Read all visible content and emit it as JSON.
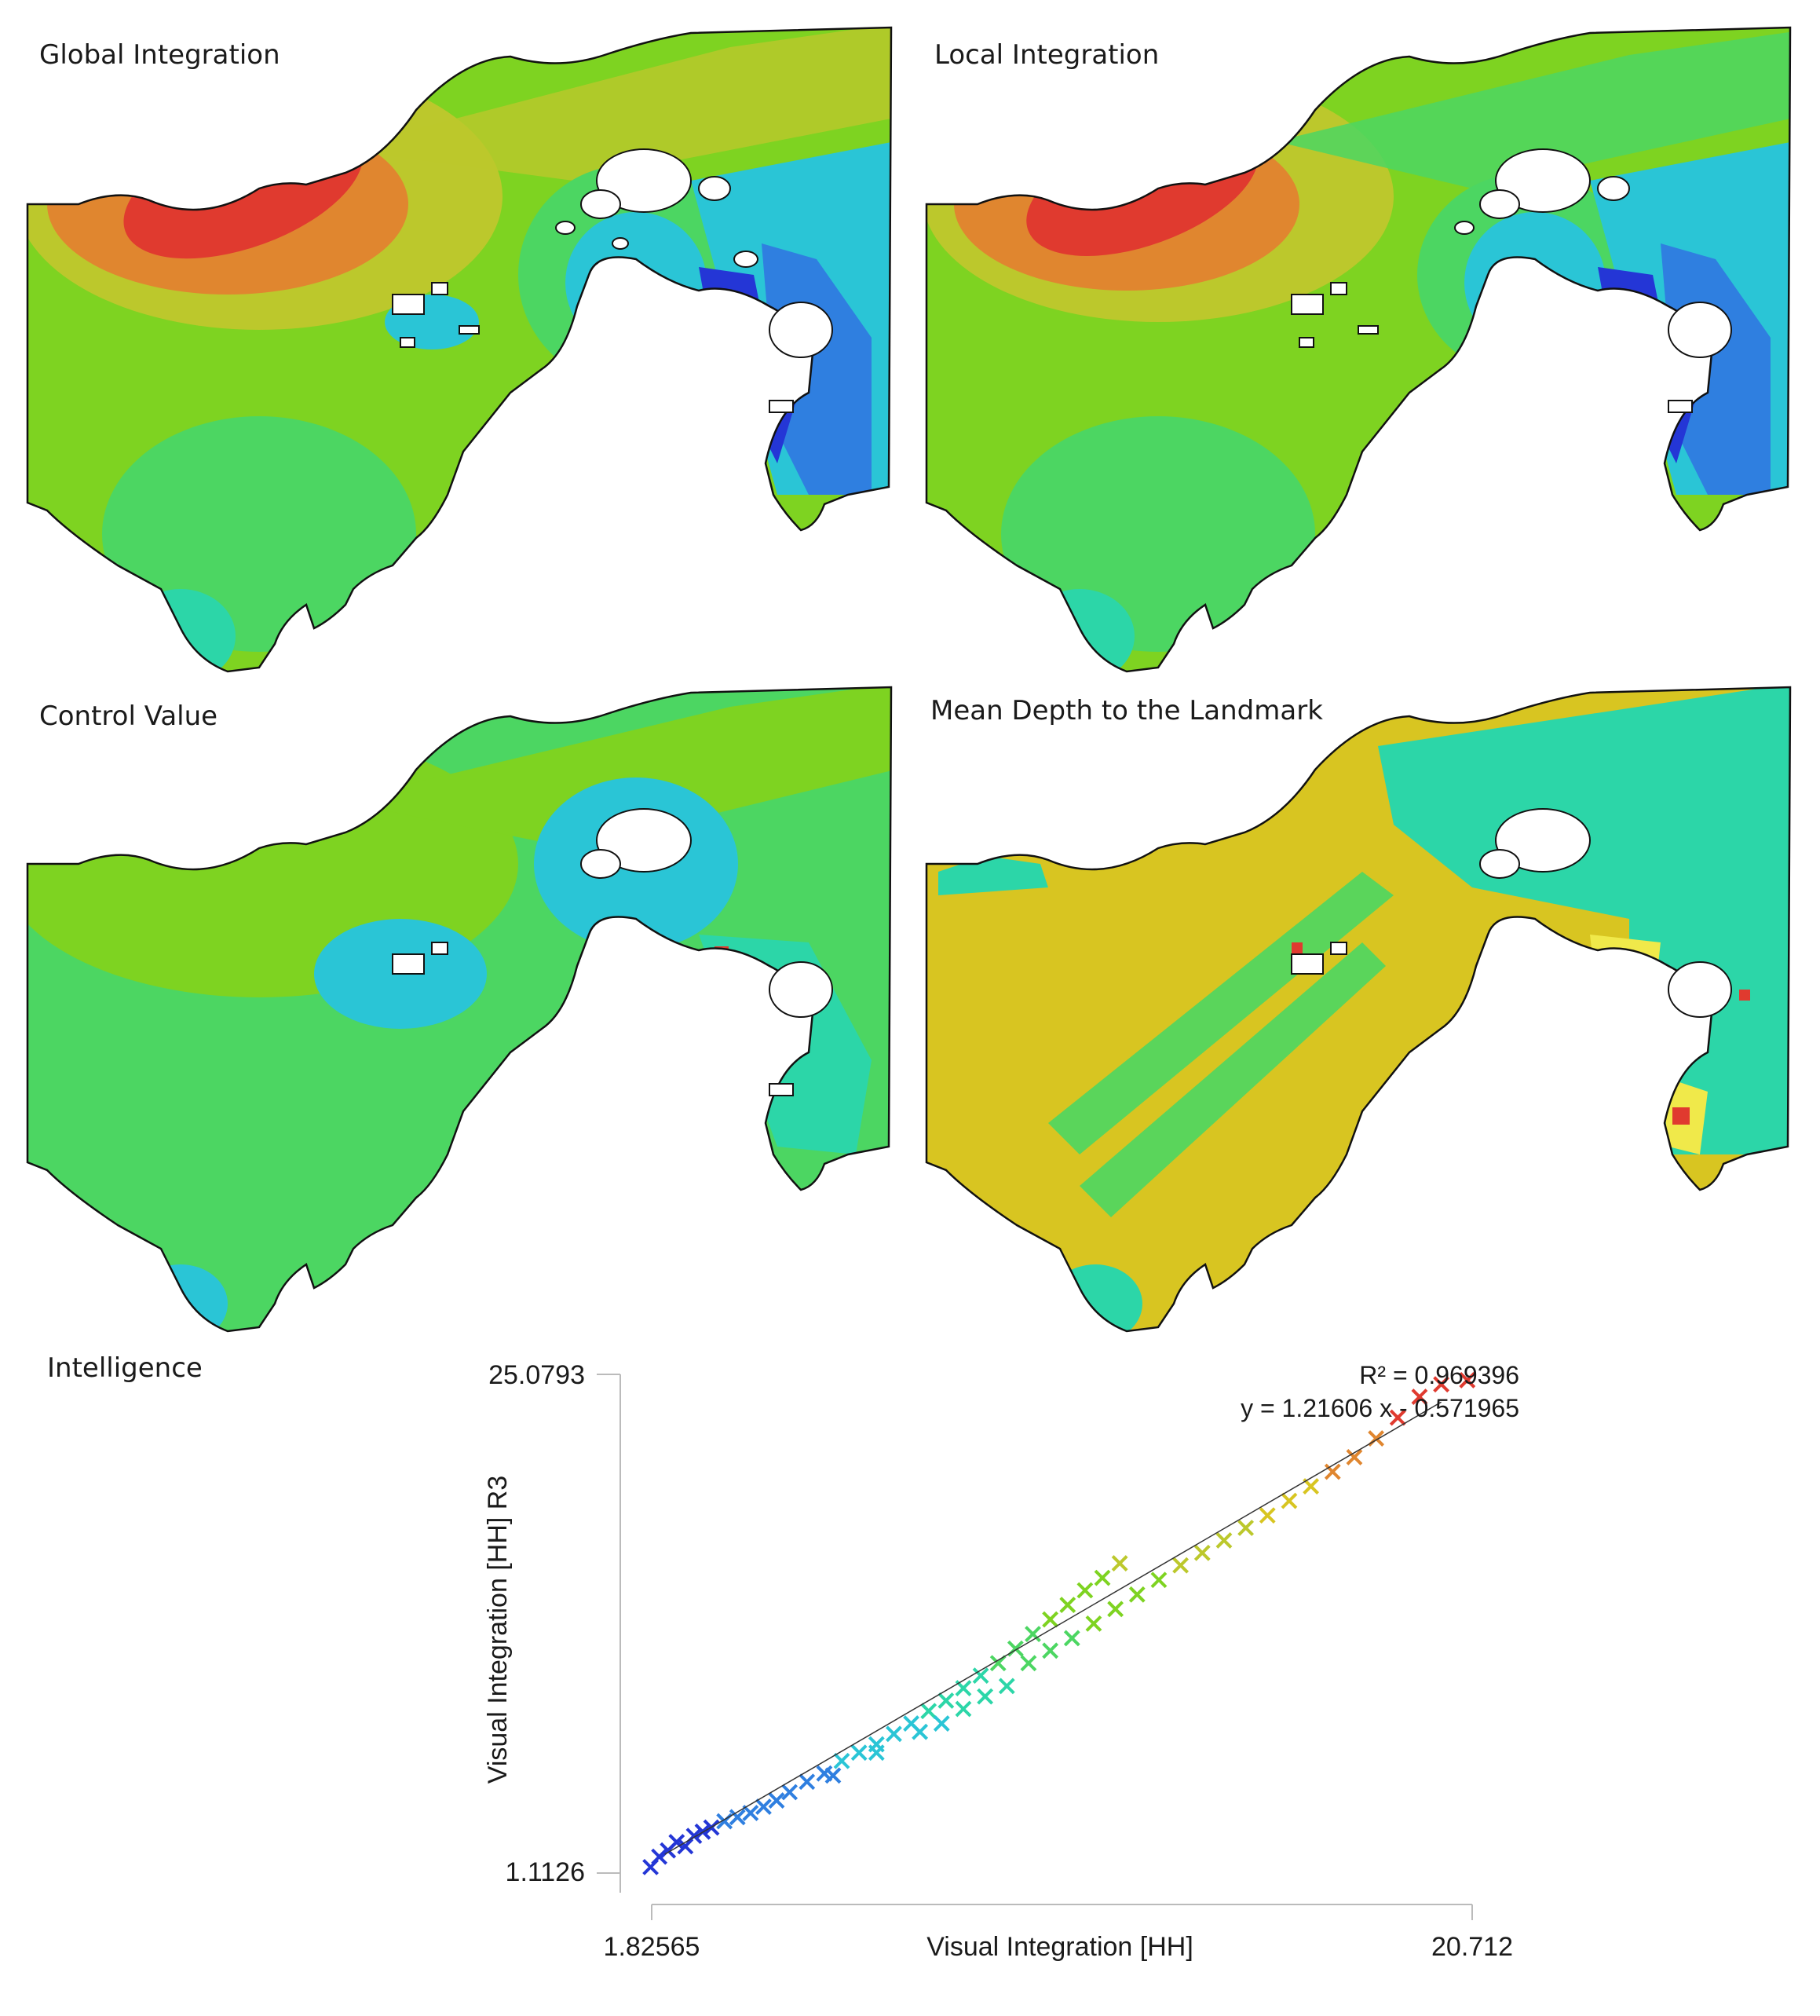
{
  "panels": {
    "global_integration": {
      "title": "Global Integration"
    },
    "local_integration": {
      "title": "Local Integration"
    },
    "control_value": {
      "title": "Control Value"
    },
    "mean_depth": {
      "title": "Mean Depth to the Landmark"
    },
    "intelligence": {
      "title": "Intelligence"
    }
  },
  "colors": {
    "red": "#e03a2f",
    "orange": "#e0862f",
    "yellow_green": "#bcc82c",
    "yellow": "#d8c521",
    "green": "#7ed321",
    "light_green": "#4cd662",
    "teal": "#2cd6a8",
    "cyan": "#2ac5d6",
    "blue": "#2f7fe0",
    "dark_blue": "#2436d6",
    "bright_yellow": "#f0e94a",
    "outline": "#111111"
  },
  "chart_data": {
    "type": "scatter",
    "xlabel": "Visual Integration [HH]",
    "ylabel": "Visual Integration [HH] R3",
    "x_min_label": "1.82565",
    "x_max_label": "20.712",
    "y_min_label": "1.1126",
    "y_max_label": "25.0793",
    "xlim": [
      1.82565,
      20.712
    ],
    "ylim": [
      1.1126,
      25.0793
    ],
    "r_squared_text": "R² = 0.969396",
    "equation_text": "y = 1.21606 x - 0.571965",
    "fit": {
      "slope": 1.21606,
      "intercept": -0.571965
    },
    "points": [
      [
        1.8,
        1.4
      ],
      [
        2.0,
        1.9
      ],
      [
        2.2,
        2.2
      ],
      [
        2.4,
        2.6
      ],
      [
        2.6,
        2.4
      ],
      [
        2.8,
        2.9
      ],
      [
        3.0,
        3.1
      ],
      [
        3.2,
        3.3
      ],
      [
        3.5,
        3.6
      ],
      [
        3.8,
        3.8
      ],
      [
        4.1,
        4.0
      ],
      [
        4.4,
        4.3
      ],
      [
        4.7,
        4.6
      ],
      [
        5.0,
        5.0
      ],
      [
        5.4,
        5.5
      ],
      [
        5.8,
        5.9
      ],
      [
        6.2,
        6.5
      ],
      [
        6.6,
        6.9
      ],
      [
        7.0,
        7.3
      ],
      [
        7.4,
        7.8
      ],
      [
        7.8,
        8.3
      ],
      [
        8.2,
        8.9
      ],
      [
        8.6,
        9.4
      ],
      [
        9.0,
        10.0
      ],
      [
        9.4,
        10.6
      ],
      [
        9.8,
        11.2
      ],
      [
        10.2,
        11.9
      ],
      [
        10.6,
        12.6
      ],
      [
        11.0,
        13.3
      ],
      [
        11.4,
        14.0
      ],
      [
        11.8,
        14.7
      ],
      [
        12.2,
        15.3
      ],
      [
        12.6,
        16.0
      ],
      [
        10.5,
        11.2
      ],
      [
        11.0,
        11.8
      ],
      [
        11.5,
        12.4
      ],
      [
        12.0,
        13.1
      ],
      [
        12.5,
        13.8
      ],
      [
        13.0,
        14.5
      ],
      [
        13.5,
        15.2
      ],
      [
        14.0,
        15.9
      ],
      [
        14.5,
        16.5
      ],
      [
        15.0,
        17.1
      ],
      [
        15.5,
        17.7
      ],
      [
        16.0,
        18.3
      ],
      [
        16.5,
        19.0
      ],
      [
        17.0,
        19.7
      ],
      [
        17.5,
        20.4
      ],
      [
        18.0,
        21.1
      ],
      [
        18.5,
        22.0
      ],
      [
        19.0,
        23.0
      ],
      [
        19.5,
        24.0
      ],
      [
        20.0,
        24.6
      ],
      [
        20.6,
        24.8
      ],
      [
        6.0,
        5.8
      ],
      [
        7.0,
        6.9
      ],
      [
        8.0,
        7.9
      ],
      [
        9.0,
        9.0
      ],
      [
        10.0,
        10.1
      ],
      [
        8.5,
        8.3
      ],
      [
        9.5,
        9.6
      ]
    ]
  }
}
